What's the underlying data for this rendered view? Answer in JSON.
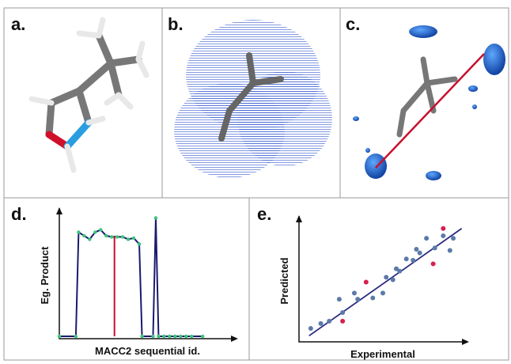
{
  "panels": {
    "a": "a.",
    "b": "b.",
    "c": "c.",
    "d": "d.",
    "e": "e."
  },
  "chart_data": [
    {
      "type": "line",
      "xlabel": "MACC2 sequential id.",
      "ylabel": "Eg. Product",
      "xlim": [
        0,
        32
      ],
      "ylim": [
        -2,
        105
      ],
      "series": [
        {
          "color": "#1a1a6e",
          "marker_color": "#3cc47c",
          "x": [
            0,
            3,
            3.5,
            4.5,
            5.5,
            6.5,
            7.5,
            8.5,
            9.5,
            10.5,
            11.5,
            12.5,
            13.5,
            14.5,
            15,
            17,
            17.5,
            18,
            19,
            20,
            21,
            22,
            23,
            24,
            26
          ],
          "values": [
            0,
            0,
            88,
            85,
            82,
            88,
            90,
            85,
            84,
            84,
            84,
            82,
            83,
            78,
            0,
            0,
            100,
            0,
            0,
            0,
            0,
            0,
            0,
            0,
            0
          ]
        },
        {
          "color": "#c8102e",
          "x": [
            10,
            10
          ],
          "values": [
            0,
            85
          ]
        }
      ]
    },
    {
      "type": "scatter",
      "xlabel": "Experimental",
      "ylabel": "Predicted",
      "xlim": [
        0,
        100
      ],
      "ylim": [
        0,
        100
      ],
      "series": [
        {
          "color": "#5b7aa8",
          "x": [
            7,
            13,
            18,
            24,
            26,
            33,
            35,
            44,
            50,
            52,
            56,
            58,
            60,
            64,
            68,
            70,
            72,
            76,
            81,
            86,
            90,
            92
          ],
          "values": [
            11,
            15,
            17,
            35,
            24,
            40,
            35,
            36,
            40,
            53,
            51,
            60,
            58,
            68,
            67,
            76,
            73,
            85,
            77,
            87,
            75,
            85
          ]
        },
        {
          "color": "#d6204f",
          "x": [
            26,
            40,
            80,
            86
          ],
          "values": [
            17,
            49,
            64,
            93
          ]
        }
      ],
      "trendline": {
        "color": "#2a2a80",
        "x": [
          6,
          97
        ],
        "values": [
          5,
          93
        ]
      }
    }
  ]
}
